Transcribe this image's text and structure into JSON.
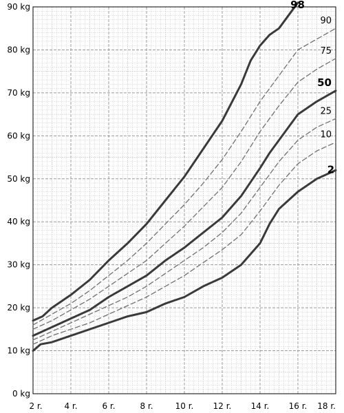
{
  "chart_data": {
    "type": "line",
    "title": "",
    "xlabel": "",
    "ylabel": "",
    "xlim": [
      2,
      18
    ],
    "ylim": [
      0,
      90
    ],
    "grid": true,
    "legend": "none",
    "x_ticks": [
      2,
      4,
      6,
      8,
      10,
      12,
      14,
      16,
      18
    ],
    "x_tick_labels": [
      "2 r.",
      "4 r.",
      "6 r.",
      "8 r.",
      "10 r.",
      "12 r.",
      "14 r.",
      "16 r.",
      "18 r."
    ],
    "y_ticks": [
      0,
      10,
      20,
      30,
      40,
      50,
      60,
      70,
      80,
      90
    ],
    "y_tick_labels": [
      "0 kg",
      "10 kg",
      "20 kg",
      "30 kg",
      "40 kg",
      "50 kg",
      "60 kg",
      "70 kg",
      "80 kg",
      "90 kg"
    ],
    "colors": {
      "major": "#3a3a3a",
      "minor": "#707070",
      "grid_major": "#9a9a9a",
      "grid_minor": "#cfcfcf"
    },
    "series": [
      {
        "name": "98",
        "label": "98",
        "style": "major",
        "x": [
          2,
          2.5,
          3,
          4,
          5,
          6,
          7,
          8,
          9,
          10,
          11,
          12,
          13,
          13.5,
          14,
          14.5,
          15,
          16
        ],
        "y": [
          17,
          18,
          20,
          23,
          26.5,
          31,
          35,
          39.5,
          45,
          50.5,
          57,
          63.5,
          72,
          77.5,
          81,
          83.5,
          85,
          91
        ]
      },
      {
        "name": "90",
        "label": "90",
        "style": "minor",
        "x": [
          2,
          3,
          4,
          5,
          6,
          7,
          8,
          9,
          10,
          11,
          12,
          13,
          14,
          15,
          16,
          17,
          18
        ],
        "y": [
          16,
          18.5,
          21,
          24,
          27.5,
          31,
          35,
          39.5,
          44,
          49,
          54.5,
          61,
          68,
          74,
          80,
          82.5,
          85
        ]
      },
      {
        "name": "75",
        "label": "75",
        "style": "minor",
        "x": [
          2,
          3,
          4,
          5,
          6,
          7,
          8,
          9,
          10,
          11,
          12,
          13,
          14,
          15,
          16,
          17,
          18
        ],
        "y": [
          15,
          17,
          19.5,
          22,
          25,
          28,
          31,
          35,
          39,
          43.5,
          48,
          54,
          61,
          67,
          72.5,
          75.5,
          78
        ]
      },
      {
        "name": "50",
        "label": "50",
        "style": "major",
        "x": [
          2,
          3,
          4,
          5,
          6,
          7,
          8,
          9,
          10,
          11,
          12,
          13,
          14,
          14.5,
          15,
          16,
          17,
          18
        ],
        "y": [
          13.5,
          15.5,
          17.5,
          19.5,
          22.5,
          25,
          27.5,
          31,
          34,
          37.5,
          41,
          46,
          52.5,
          56,
          59,
          65,
          68,
          70.5
        ]
      },
      {
        "name": "25",
        "label": "25",
        "style": "minor",
        "x": [
          2,
          3,
          4,
          5,
          6,
          7,
          8,
          9,
          10,
          11,
          12,
          13,
          14,
          15,
          16,
          17,
          18
        ],
        "y": [
          12.5,
          14.5,
          16.5,
          18.5,
          20.5,
          22.5,
          25,
          28,
          31,
          34,
          37.5,
          42,
          48,
          54,
          59,
          62,
          64
        ]
      },
      {
        "name": "10",
        "label": "10",
        "style": "minor",
        "x": [
          2,
          3,
          4,
          5,
          6,
          7,
          8,
          9,
          10,
          11,
          12,
          13,
          14,
          15,
          16,
          17,
          18
        ],
        "y": [
          11.5,
          13.5,
          15,
          16.5,
          18.5,
          20.5,
          22.5,
          25,
          27.5,
          30.5,
          33.5,
          37,
          42.5,
          48.5,
          53.5,
          56.5,
          58.5
        ]
      },
      {
        "name": "2",
        "label": "2",
        "style": "major",
        "x": [
          2,
          2.4,
          3,
          4,
          5,
          6,
          7,
          8,
          9,
          10,
          11,
          12,
          13,
          14,
          14.5,
          15,
          16,
          17,
          18
        ],
        "y": [
          10,
          11.5,
          12,
          13.5,
          15,
          16.5,
          18,
          19,
          21,
          22.5,
          25,
          27,
          30,
          35,
          39.5,
          43,
          47,
          50,
          52
        ]
      }
    ]
  }
}
